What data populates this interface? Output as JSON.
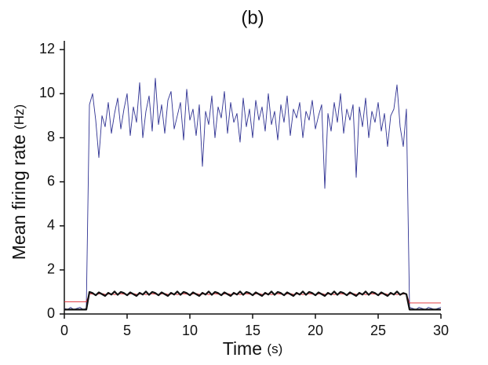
{
  "chart_data": {
    "type": "line",
    "title": "(b)",
    "xlabel": "Time",
    "xunit": "(s)",
    "ylabel": "Mean firing rate",
    "yunit": "(Hz)",
    "xlim": [
      0,
      30
    ],
    "ylim": [
      0,
      12.4
    ],
    "xticks": [
      0,
      5,
      10,
      15,
      20,
      25,
      30
    ],
    "yticks": [
      0,
      2,
      4,
      6,
      8,
      10,
      12
    ],
    "x": [
      0,
      0.25,
      0.5,
      0.75,
      1,
      1.25,
      1.5,
      1.75,
      2,
      2.25,
      2.5,
      2.75,
      3,
      3.25,
      3.5,
      3.75,
      4,
      4.25,
      4.5,
      4.75,
      5,
      5.25,
      5.5,
      5.75,
      6,
      6.25,
      6.5,
      6.75,
      7,
      7.25,
      7.5,
      7.75,
      8,
      8.25,
      8.5,
      8.75,
      9,
      9.25,
      9.5,
      9.75,
      10,
      10.25,
      10.5,
      10.75,
      11,
      11.25,
      11.5,
      11.75,
      12,
      12.25,
      12.5,
      12.75,
      13,
      13.25,
      13.5,
      13.75,
      14,
      14.25,
      14.5,
      14.75,
      15,
      15.25,
      15.5,
      15.75,
      16,
      16.25,
      16.5,
      16.75,
      17,
      17.25,
      17.5,
      17.75,
      18,
      18.25,
      18.5,
      18.75,
      19,
      19.25,
      19.5,
      19.75,
      20,
      20.25,
      20.5,
      20.75,
      21,
      21.25,
      21.5,
      21.75,
      22,
      22.25,
      22.5,
      22.75,
      23,
      23.25,
      23.5,
      23.75,
      24,
      24.25,
      24.5,
      24.75,
      25,
      25.25,
      25.5,
      25.75,
      26,
      26.25,
      26.5,
      26.75,
      27,
      27.25,
      27.5,
      27.75,
      28,
      28.25,
      28.5,
      28.75,
      29,
      29.25,
      29.5,
      29.75,
      30
    ],
    "series": [
      {
        "color": "#2e3192",
        "values": [
          0.25,
          0.2,
          0.3,
          0.2,
          0.25,
          0.3,
          0.2,
          0.25,
          9.5,
          10.0,
          8.8,
          7.1,
          9.0,
          8.5,
          9.6,
          8.2,
          9.1,
          9.8,
          8.4,
          9.3,
          10.0,
          8.1,
          9.4,
          8.7,
          10.5,
          8.0,
          9.2,
          9.9,
          8.3,
          10.7,
          8.6,
          9.5,
          8.2,
          9.7,
          10.1,
          8.4,
          9.0,
          9.6,
          7.9,
          10.2,
          8.8,
          9.3,
          8.1,
          9.5,
          6.7,
          9.2,
          8.6,
          9.9,
          8.0,
          9.4,
          8.9,
          10.1,
          8.2,
          9.6,
          8.7,
          9.1,
          7.8,
          9.8,
          8.5,
          9.3,
          8.0,
          9.7,
          8.8,
          9.4,
          8.3,
          10.0,
          8.6,
          9.2,
          7.9,
          9.5,
          8.7,
          9.9,
          8.1,
          9.3,
          8.9,
          9.6,
          8.0,
          9.2,
          8.8,
          9.7,
          8.4,
          9.0,
          9.5,
          5.7,
          9.1,
          8.3,
          9.6,
          8.7,
          10.0,
          8.2,
          9.3,
          8.8,
          9.5,
          6.2,
          9.4,
          8.5,
          9.8,
          8.0,
          9.2,
          8.7,
          9.6,
          8.3,
          9.1,
          7.6,
          9.0,
          9.3,
          10.4,
          8.5,
          7.6,
          9.3,
          0.3,
          0.25,
          0.2,
          0.3,
          0.25,
          0.2,
          0.3,
          0.25,
          0.2,
          0.25,
          0.3
        ]
      },
      {
        "color": "#e0282e",
        "values": [
          0.55,
          0.55,
          0.55,
          0.55,
          0.55,
          0.55,
          0.55,
          0.55,
          0.92,
          0.9,
          0.88,
          0.91,
          0.93,
          0.89,
          0.9,
          0.92,
          0.88,
          0.91,
          0.92,
          0.9,
          0.88,
          0.91,
          0.93,
          0.89,
          0.9,
          0.92,
          0.88,
          0.91,
          0.92,
          0.9,
          0.88,
          0.91,
          0.93,
          0.89,
          0.9,
          0.92,
          0.88,
          0.91,
          0.92,
          0.9,
          0.88,
          0.91,
          0.93,
          0.89,
          0.9,
          0.92,
          0.88,
          0.91,
          0.92,
          0.9,
          0.88,
          0.91,
          0.93,
          0.89,
          0.9,
          0.92,
          0.88,
          0.91,
          0.92,
          0.9,
          0.88,
          0.91,
          0.93,
          0.89,
          0.9,
          0.92,
          0.88,
          0.91,
          0.92,
          0.9,
          0.88,
          0.91,
          0.93,
          0.89,
          0.9,
          0.92,
          0.88,
          0.91,
          0.92,
          0.9,
          0.88,
          0.91,
          0.93,
          0.89,
          0.9,
          0.92,
          0.88,
          0.91,
          0.92,
          0.9,
          0.88,
          0.91,
          0.93,
          0.89,
          0.9,
          0.92,
          0.88,
          0.91,
          0.92,
          0.9,
          0.88,
          0.91,
          0.93,
          0.89,
          0.9,
          0.92,
          0.88,
          0.91,
          0.9,
          0.92,
          0.5,
          0.5,
          0.5,
          0.5,
          0.5,
          0.5,
          0.5,
          0.5,
          0.5,
          0.5,
          0.5
        ]
      },
      {
        "color": "#111111",
        "values": [
          0.2,
          0.2,
          0.2,
          0.2,
          0.2,
          0.2,
          0.2,
          0.2,
          1.0,
          0.95,
          0.85,
          0.98,
          0.9,
          0.82,
          0.96,
          0.88,
          1.02,
          0.87,
          1.0,
          0.95,
          0.85,
          0.98,
          0.9,
          0.82,
          0.96,
          0.88,
          1.02,
          0.87,
          1.0,
          0.95,
          0.85,
          0.98,
          0.9,
          0.82,
          0.96,
          0.88,
          1.02,
          0.87,
          1.0,
          0.95,
          0.85,
          0.98,
          0.9,
          0.82,
          0.96,
          0.88,
          1.02,
          0.87,
          1.0,
          0.95,
          0.85,
          0.98,
          0.9,
          0.82,
          0.96,
          0.88,
          1.02,
          0.87,
          1.0,
          0.95,
          0.85,
          0.98,
          0.9,
          0.82,
          0.96,
          0.88,
          1.02,
          0.87,
          1.0,
          0.95,
          0.85,
          0.98,
          0.9,
          0.82,
          0.96,
          0.88,
          1.02,
          0.87,
          1.0,
          0.95,
          0.85,
          0.98,
          0.9,
          0.82,
          0.96,
          0.88,
          1.02,
          0.87,
          1.0,
          0.95,
          0.85,
          0.98,
          0.9,
          0.82,
          0.96,
          0.88,
          1.02,
          0.87,
          1.0,
          0.95,
          0.85,
          0.98,
          0.9,
          0.82,
          0.96,
          0.88,
          1.02,
          0.87,
          0.95,
          0.9,
          0.2,
          0.2,
          0.2,
          0.2,
          0.2,
          0.2,
          0.2,
          0.2,
          0.2,
          0.2,
          0.2
        ]
      }
    ]
  }
}
